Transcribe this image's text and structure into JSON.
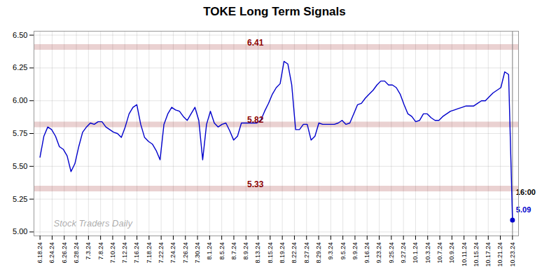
{
  "chart_data": {
    "type": "line",
    "title": "TOKE Long Term Signals",
    "color": "#0000cc",
    "grid": true,
    "xlim": [
      -0.5,
      39.5
    ],
    "xticks": [
      {
        "value": 0,
        "label": "6.18.24"
      },
      {
        "value": 1,
        "label": "6.24.24"
      },
      {
        "value": 2,
        "label": "6.26.24"
      },
      {
        "value": 3,
        "label": "6.28.24"
      },
      {
        "value": 4,
        "label": "7.3.24"
      },
      {
        "value": 5,
        "label": "7.8.24"
      },
      {
        "value": 6,
        "label": "7.10.24"
      },
      {
        "value": 7,
        "label": "7.12.24"
      },
      {
        "value": 8,
        "label": "7.16.24"
      },
      {
        "value": 9,
        "label": "7.18.24"
      },
      {
        "value": 10,
        "label": "7.22.24"
      },
      {
        "value": 11,
        "label": "7.24.24"
      },
      {
        "value": 12,
        "label": "7.26.24"
      },
      {
        "value": 13,
        "label": "7.30.24"
      },
      {
        "value": 14,
        "label": "8.1.24"
      },
      {
        "value": 15,
        "label": "8.5.24"
      },
      {
        "value": 16,
        "label": "8.7.24"
      },
      {
        "value": 17,
        "label": "8.9.24"
      },
      {
        "value": 18,
        "label": "8.13.24"
      },
      {
        "value": 19,
        "label": "8.15.24"
      },
      {
        "value": 20,
        "label": "8.19.24"
      },
      {
        "value": 21,
        "label": "8.22.24"
      },
      {
        "value": 22,
        "label": "8.27.24"
      },
      {
        "value": 23,
        "label": "8.29.24"
      },
      {
        "value": 24,
        "label": "9.3.24"
      },
      {
        "value": 25,
        "label": "9.5.24"
      },
      {
        "value": 26,
        "label": "9.9.24"
      },
      {
        "value": 27,
        "label": "9.16.24"
      },
      {
        "value": 28,
        "label": "9.23.24"
      },
      {
        "value": 29,
        "label": "9.25.24"
      },
      {
        "value": 30,
        "label": "9.27.24"
      },
      {
        "value": 31,
        "label": "10.1.24"
      },
      {
        "value": 32,
        "label": "10.3.24"
      },
      {
        "value": 33,
        "label": "10.7.24"
      },
      {
        "value": 34,
        "label": "10.9.24"
      },
      {
        "value": 35,
        "label": "10.11.24"
      },
      {
        "value": 36,
        "label": "10.15.24"
      },
      {
        "value": 37,
        "label": "10.17.24"
      },
      {
        "value": 38,
        "label": "10.21.24"
      },
      {
        "value": 39,
        "label": "10.23.24"
      }
    ],
    "ylim": [
      4.97,
      6.53
    ],
    "yticks": [
      {
        "value": 5.0,
        "label": "5.00"
      },
      5.25,
      {
        "value": 5.5,
        "label": "5.50"
      },
      5.75,
      {
        "value": 6.0,
        "label": "6.00"
      },
      6.25,
      {
        "value": 6.5,
        "label": "6.50"
      }
    ],
    "values": [
      5.57,
      5.73,
      5.8,
      5.78,
      5.73,
      5.65,
      5.63,
      5.58,
      5.46,
      5.52,
      5.65,
      5.76,
      5.8,
      5.83,
      5.82,
      5.84,
      5.84,
      5.8,
      5.78,
      5.76,
      5.75,
      5.72,
      5.8,
      5.9,
      5.95,
      5.97,
      5.82,
      5.72,
      5.69,
      5.67,
      5.62,
      5.55,
      5.82,
      5.9,
      5.95,
      5.93,
      5.92,
      5.88,
      5.85,
      5.9,
      5.95,
      5.85,
      5.55,
      5.82,
      5.92,
      5.83,
      5.8,
      5.82,
      5.83,
      5.77,
      5.7,
      5.73,
      5.83,
      5.83,
      5.83,
      5.83,
      5.83,
      5.85,
      5.92,
      5.98,
      6.05,
      6.1,
      6.13,
      6.3,
      6.28,
      6.12,
      5.78,
      5.78,
      5.82,
      5.82,
      5.7,
      5.73,
      5.83,
      5.82,
      5.82,
      5.82,
      5.82,
      5.83,
      5.85,
      5.82,
      5.83,
      5.9,
      5.97,
      5.98,
      6.02,
      6.05,
      6.08,
      6.12,
      6.15,
      6.15,
      6.12,
      6.12,
      6.1,
      6.05,
      5.97,
      5.9,
      5.88,
      5.84,
      5.85,
      5.9,
      5.9,
      5.87,
      5.85,
      5.85,
      5.88,
      5.9,
      5.92,
      5.93,
      5.94,
      5.95,
      5.96,
      5.96,
      5.96,
      5.98,
      6.0,
      6.0,
      6.03,
      6.06,
      6.08,
      6.1,
      6.22,
      6.2,
      5.09
    ],
    "hlines": [
      {
        "y": 6.41,
        "label": "6.41",
        "color": "#8b0000"
      },
      {
        "y": 5.82,
        "label": "5.82",
        "color": "#8b0000"
      },
      {
        "y": 5.33,
        "label": "5.33",
        "color": "#8b0000"
      }
    ],
    "last_point": {
      "value": 5.09,
      "label": "5.09",
      "time_label": "16:00"
    },
    "watermark": "Stock Traders Daily"
  }
}
